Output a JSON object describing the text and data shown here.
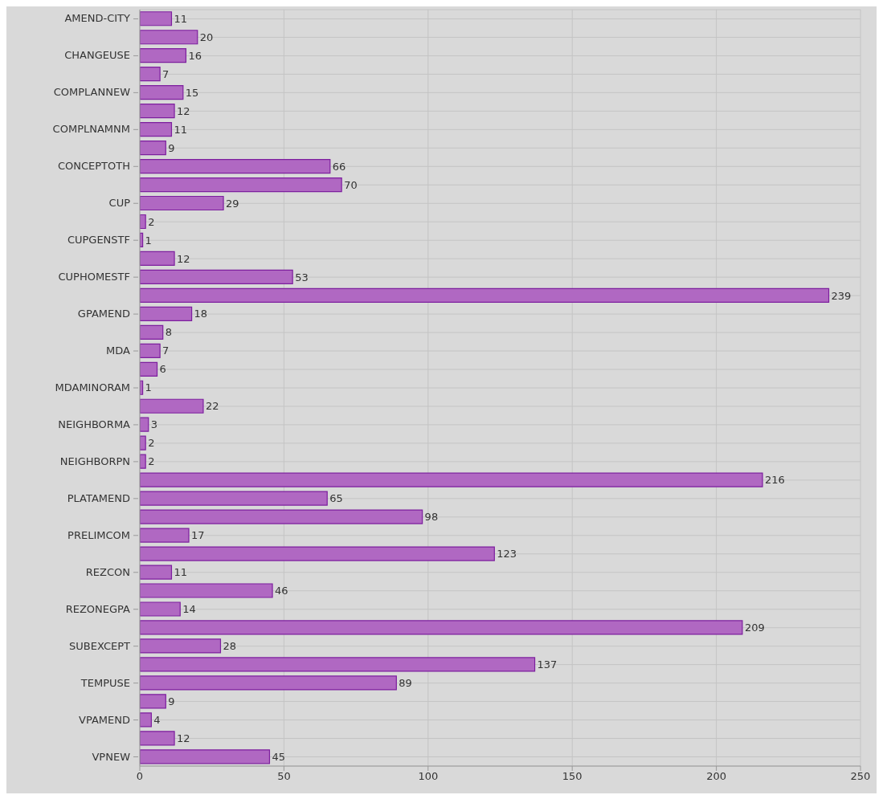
{
  "chart_data": {
    "type": "bar",
    "orientation": "horizontal",
    "categories": [
      "AMEND-CITY",
      null,
      "CHANGEUSE",
      null,
      "COMPLANNEW",
      null,
      "COMPLNAMNM",
      null,
      "CONCEPTOTH",
      null,
      "CUP",
      null,
      "CUPGENSTF",
      null,
      "CUPHOMESTF",
      null,
      "GPAMEND",
      null,
      "MDA",
      null,
      "MDAMINORAM",
      null,
      "NEIGHBORMA",
      null,
      "NEIGHBORPN",
      null,
      "PLATAMEND",
      null,
      "PRELIMCOM",
      null,
      "REZCON",
      null,
      "REZONEGPA",
      null,
      "SUBEXCEPT",
      null,
      "TEMPUSE",
      null,
      "VPAMEND",
      null,
      "VPNEW"
    ],
    "values": [
      11,
      20,
      16,
      7,
      15,
      12,
      11,
      9,
      66,
      70,
      29,
      2,
      1,
      12,
      53,
      239,
      18,
      8,
      7,
      6,
      1,
      22,
      3,
      2,
      2,
      216,
      65,
      98,
      17,
      123,
      11,
      46,
      14,
      209,
      28,
      137,
      89,
      9,
      4,
      12,
      45
    ],
    "color": "#b068c2",
    "xlim": [
      0,
      250
    ],
    "xticks": [
      0,
      50,
      100,
      150,
      200,
      250
    ],
    "grid": true,
    "data_labels": true
  }
}
